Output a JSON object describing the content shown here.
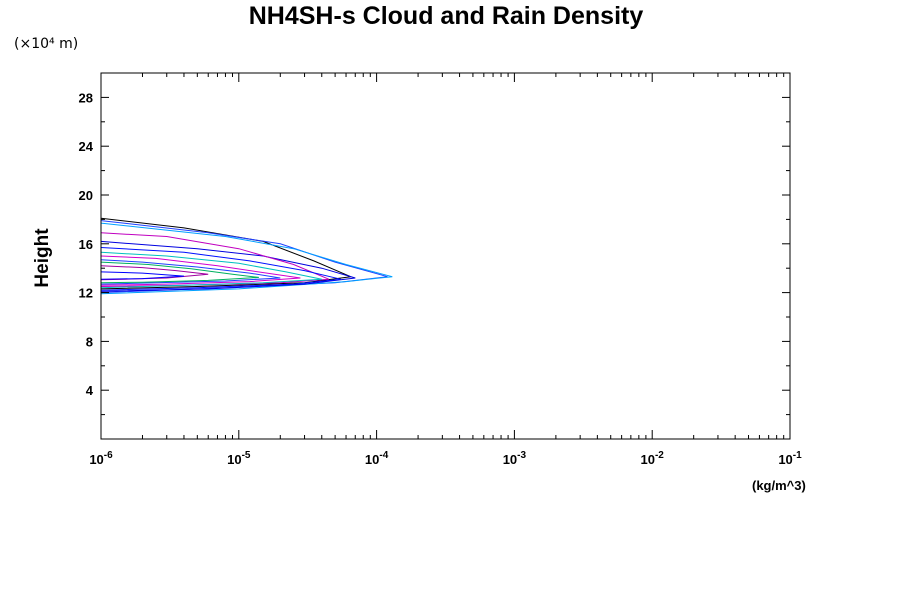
{
  "chart_data": {
    "type": "line",
    "title": "NH4SH-s Cloud and Rain Density",
    "y_unit": "(×10⁴ m)",
    "xlabel": "(kg/m^3)",
    "ylabel": "Height",
    "x_scale": "log",
    "xlim": [
      1e-06,
      0.1
    ],
    "ylim": [
      0,
      30
    ],
    "x_ticks": [
      {
        "value": 1e-06,
        "base": "10",
        "exp": "-6"
      },
      {
        "value": 1e-05,
        "base": "10",
        "exp": "-5"
      },
      {
        "value": 0.0001,
        "base": "10",
        "exp": "-4"
      },
      {
        "value": 0.001,
        "base": "10",
        "exp": "-3"
      },
      {
        "value": 0.01,
        "base": "10",
        "exp": "-2"
      },
      {
        "value": 0.1,
        "base": "10",
        "exp": "-1"
      }
    ],
    "y_ticks": [
      "4",
      "8",
      "12",
      "16",
      "20",
      "24",
      "28"
    ],
    "grid": false,
    "series": [
      {
        "color": "#000000",
        "points": [
          [
            1e-06,
            18.1
          ],
          [
            4e-06,
            17.3
          ],
          [
            1.5e-05,
            16.2
          ],
          [
            3.5e-05,
            14.6
          ],
          [
            6.5e-05,
            13.3
          ],
          [
            3e-05,
            12.8
          ],
          [
            5e-06,
            12.5
          ],
          [
            1e-06,
            12.3
          ]
        ]
      },
      {
        "color": "#1f3fff",
        "points": [
          [
            1e-06,
            17.9
          ],
          [
            6e-06,
            16.9
          ],
          [
            2e-05,
            16.0
          ],
          [
            5e-05,
            14.5
          ],
          [
            0.00012,
            13.3
          ],
          [
            5e-05,
            12.8
          ],
          [
            8e-06,
            12.4
          ],
          [
            1e-06,
            12.0
          ]
        ]
      },
      {
        "color": "#00a0ff",
        "points": [
          [
            1e-06,
            17.7
          ],
          [
            8e-06,
            16.6
          ],
          [
            2.5e-05,
            15.6
          ],
          [
            6e-05,
            14.3
          ],
          [
            0.00013,
            13.3
          ],
          [
            6e-05,
            12.9
          ],
          [
            1e-05,
            12.3
          ],
          [
            1e-06,
            11.9
          ]
        ]
      },
      {
        "color": "#0000e0",
        "points": [
          [
            1e-06,
            16.2
          ],
          [
            5e-06,
            15.6
          ],
          [
            1.5e-05,
            15.0
          ],
          [
            4e-05,
            14.0
          ],
          [
            7e-05,
            13.2
          ],
          [
            3e-05,
            12.7
          ],
          [
            6e-06,
            12.3
          ],
          [
            1e-06,
            12.1
          ]
        ]
      },
      {
        "color": "#c000c0",
        "points": [
          [
            1e-06,
            16.9
          ],
          [
            3e-06,
            16.6
          ],
          [
            1e-05,
            15.6
          ],
          [
            2.5e-05,
            14.3
          ],
          [
            4.5e-05,
            13.1
          ],
          [
            2e-05,
            12.8
          ],
          [
            4e-06,
            12.6
          ],
          [
            1e-06,
            12.5
          ]
        ]
      },
      {
        "color": "#0010ff",
        "points": [
          [
            1e-06,
            15.7
          ],
          [
            4e-06,
            15.3
          ],
          [
            1.2e-05,
            14.6
          ],
          [
            3e-05,
            13.8
          ],
          [
            5.5e-05,
            13.1
          ],
          [
            2.5e-05,
            12.7
          ],
          [
            5e-06,
            12.4
          ],
          [
            1e-06,
            12.2
          ]
        ]
      },
      {
        "color": "#00c0c0",
        "points": [
          [
            1e-06,
            15.3
          ],
          [
            3e-06,
            15.0
          ],
          [
            1e-05,
            14.4
          ],
          [
            2.2e-05,
            13.7
          ],
          [
            4e-05,
            13.1
          ],
          [
            1.5e-05,
            12.8
          ],
          [
            4e-06,
            12.6
          ],
          [
            1e-06,
            12.4
          ]
        ]
      },
      {
        "color": "#d000d0",
        "points": [
          [
            1e-06,
            15.0
          ],
          [
            2.5e-06,
            14.8
          ],
          [
            7e-06,
            14.2
          ],
          [
            1.6e-05,
            13.6
          ],
          [
            2.8e-05,
            13.2
          ],
          [
            1.2e-05,
            12.9
          ],
          [
            3e-06,
            12.7
          ],
          [
            1e-06,
            12.6
          ]
        ]
      },
      {
        "color": "#2040ff",
        "points": [
          [
            1e-06,
            14.7
          ],
          [
            2e-06,
            14.5
          ],
          [
            5e-06,
            14.1
          ],
          [
            1.2e-05,
            13.6
          ],
          [
            2e-05,
            13.2
          ],
          [
            8e-06,
            12.95
          ],
          [
            2.5e-06,
            12.8
          ],
          [
            1e-06,
            12.7
          ]
        ]
      },
      {
        "color": "#a000a0",
        "points": [
          [
            1e-06,
            14.2
          ],
          [
            2e-06,
            14.05
          ],
          [
            3.5e-06,
            13.8
          ],
          [
            6e-06,
            13.5
          ],
          [
            3e-06,
            13.2
          ],
          [
            1.5e-06,
            13.1
          ],
          [
            1e-06,
            13.05
          ]
        ]
      },
      {
        "color": "#00b060",
        "points": [
          [
            1e-06,
            14.5
          ],
          [
            2.2e-06,
            14.3
          ],
          [
            4.5e-06,
            13.95
          ],
          [
            9e-06,
            13.5
          ],
          [
            1.4e-05,
            13.25
          ],
          [
            6e-06,
            13.0
          ],
          [
            2e-06,
            12.85
          ],
          [
            1e-06,
            12.8
          ]
        ]
      },
      {
        "color": "#0000ff",
        "points": [
          [
            1e-06,
            13.7
          ],
          [
            2e-06,
            13.6
          ],
          [
            4e-06,
            13.35
          ],
          [
            2e-06,
            13.15
          ],
          [
            1e-06,
            13.1
          ]
        ]
      }
    ]
  }
}
